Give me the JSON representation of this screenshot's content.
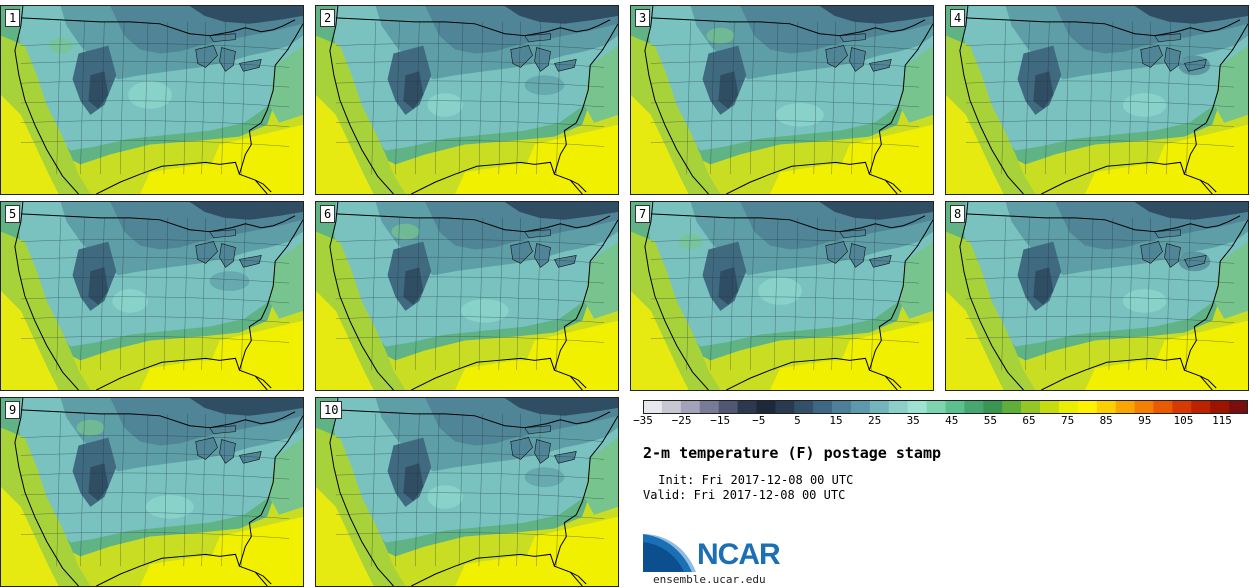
{
  "title": "2-m temperature (F) postage stamp",
  "init_line": " Init: Fri 2017-12-08 00 UTC",
  "valid_line": "Valid: Fri 2017-12-08 00 UTC",
  "logo": {
    "name": "NCAR",
    "site": "ensemble.ucar.edu",
    "color": "#1a6fb5"
  },
  "members": [
    {
      "label": "1",
      "variant": 0
    },
    {
      "label": "2",
      "variant": 1
    },
    {
      "label": "3",
      "variant": 2
    },
    {
      "label": "4",
      "variant": 3
    },
    {
      "label": "5",
      "variant": 1
    },
    {
      "label": "6",
      "variant": 2
    },
    {
      "label": "7",
      "variant": 0
    },
    {
      "label": "8",
      "variant": 3
    },
    {
      "label": "9",
      "variant": 2
    },
    {
      "label": "10",
      "variant": 1
    }
  ],
  "colorbar": {
    "min": -35,
    "max": 120,
    "step": 5,
    "ticks": [
      "−35",
      "−25",
      "−15",
      "−5",
      "5",
      "15",
      "25",
      "35",
      "45",
      "55",
      "65",
      "75",
      "85",
      "95",
      "105",
      "115"
    ],
    "colors": [
      "#e7e7ee",
      "#c7c7d4",
      "#a2a3ba",
      "#777b97",
      "#4f5773",
      "#2c3850",
      "#1d2838",
      "#283a50",
      "#33506a",
      "#3f6682",
      "#4e7f98",
      "#5d98ac",
      "#73b4bd",
      "#8ccfc8",
      "#9ee3d2",
      "#7fd4b0",
      "#5cbf8e",
      "#46a870",
      "#3a9552",
      "#5fae3a",
      "#93c726",
      "#c7dc10",
      "#eaee00",
      "#fff200",
      "#fbd000",
      "#f9a700",
      "#f47f00",
      "#ea5a00",
      "#d73a00",
      "#bc2200",
      "#9a1400",
      "#7a0d0d"
    ]
  }
}
